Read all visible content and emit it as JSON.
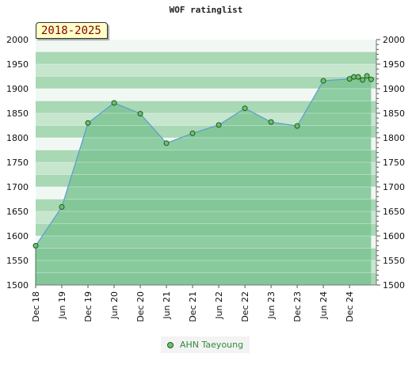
{
  "chart_data": {
    "type": "area",
    "title": "WOF ratinglist",
    "period_badge": "2018-2025",
    "ylim": [
      1500,
      2000
    ],
    "y_ticks": [
      1500,
      1550,
      1600,
      1650,
      1700,
      1750,
      1800,
      1850,
      1900,
      1950,
      2000
    ],
    "x_tick_labels": [
      "Dec 18",
      "Jun 19",
      "Dec 19",
      "Jun 20",
      "Dec 20",
      "Jun 21",
      "Dec 21",
      "Jun 22",
      "Dec 22",
      "Jun 23",
      "Dec 23",
      "Jun 24",
      "Dec 24"
    ],
    "x_range": [
      2018.917,
      2025.43
    ],
    "series": [
      {
        "name": "AHN Taeyoung",
        "color": "#5b9bd5",
        "points": [
          {
            "x": 2018.917,
            "y": 1580
          },
          {
            "x": 2019.417,
            "y": 1659
          },
          {
            "x": 2019.917,
            "y": 1830
          },
          {
            "x": 2020.417,
            "y": 1871
          },
          {
            "x": 2020.917,
            "y": 1849
          },
          {
            "x": 2021.417,
            "y": 1789
          },
          {
            "x": 2021.917,
            "y": 1809
          },
          {
            "x": 2022.417,
            "y": 1826
          },
          {
            "x": 2022.917,
            "y": 1860
          },
          {
            "x": 2023.417,
            "y": 1832
          },
          {
            "x": 2023.917,
            "y": 1824
          },
          {
            "x": 2024.417,
            "y": 1916
          },
          {
            "x": 2024.917,
            "y": 1920
          },
          {
            "x": 2025.0,
            "y": 1924
          },
          {
            "x": 2025.083,
            "y": 1924
          },
          {
            "x": 2025.167,
            "y": 1918
          },
          {
            "x": 2025.25,
            "y": 1926
          },
          {
            "x": 2025.33,
            "y": 1919
          }
        ]
      }
    ],
    "legend_position": "bottom"
  },
  "colors": {
    "band_dark": "#a9d8b4",
    "band_light": "#c6e6ce",
    "band_white": "#f1f8f3",
    "fill_green": "#7cc493",
    "fill_green_light": "#92cfa5",
    "line": "#5b9bd5",
    "marker_fill": "#6fbf6f",
    "marker_stroke": "#1e5a1e"
  }
}
